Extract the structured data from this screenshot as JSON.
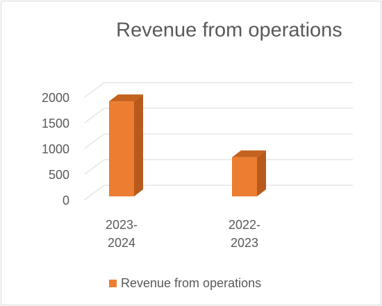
{
  "chart_data": {
    "type": "bar3d",
    "title": "Revenue from operations",
    "categories": [
      "2023-2024",
      "2022-2023"
    ],
    "series": [
      {
        "name": "Revenue from operations",
        "color": "#ED7D31",
        "values": [
          1850,
          760
        ]
      }
    ],
    "ylim": [
      0,
      2000
    ],
    "yticks": [
      0,
      500,
      1000,
      1500,
      2000
    ],
    "grid": true,
    "legend": "bottom"
  }
}
